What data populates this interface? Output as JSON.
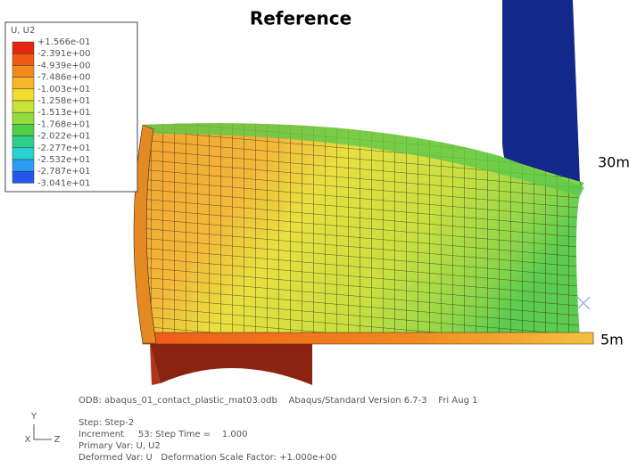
{
  "title": "Reference",
  "legend": {
    "title": "U, U2",
    "labels": [
      "+1.566e-01",
      "-2.391e+00",
      "-4.939e+00",
      "-7.486e+00",
      "-1.003e+01",
      "-1.258e+01",
      "-1.513e+01",
      "-1.768e+01",
      "-2.022e+01",
      "-2.277e+01",
      "-2.532e+01",
      "-2.787e+01",
      "-3.041e+01"
    ],
    "colors": [
      "#e8260f",
      "#ef5a14",
      "#f58a1c",
      "#f7b52a",
      "#f2dd2e",
      "#c9e33a",
      "#94dc3e",
      "#4fcf45",
      "#2fcf8c",
      "#27d3d3",
      "#2a9ef2",
      "#2456ee"
    ]
  },
  "annotations": [
    "30m",
    "5m"
  ],
  "triad": [
    "Y",
    "X",
    "Z"
  ],
  "footer": {
    "odb": "ODB: abaqus_01_contact_plastic_mat03.odb    Abaqus/Standard Version 6.7-3    Fri Aug 1",
    "lines": [
      "Step: Step-2",
      "Increment     53: Step Time =    1.000",
      "Primary Var: U, U2",
      "Deformed Var: U   Deformation Scale Factor: +1.000e+00"
    ]
  }
}
